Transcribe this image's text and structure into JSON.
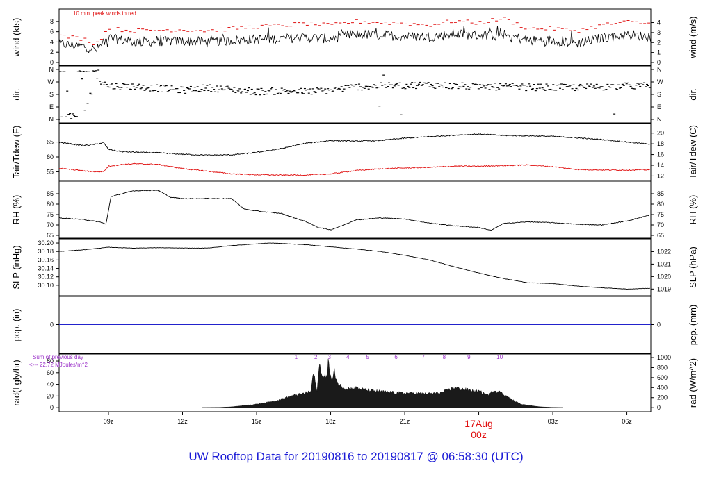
{
  "page": {
    "title": "UW Rooftop Data for 20190816  to  20190817 @ 06:58:30  (UTC)"
  },
  "colors": {
    "axis": "#000000",
    "peak": "#e01010",
    "dewpoint": "#e01010",
    "precip": "#2222cc",
    "rad": "#9a2fc8",
    "title": "#1a1ad6",
    "date_marker": "#e01010"
  },
  "x_axis": {
    "tick_labels": [
      "09z",
      "12z",
      "15z",
      "18z",
      "21z",
      "00z",
      "03z",
      "06z"
    ],
    "tick_hours_utc": [
      9,
      12,
      15,
      18,
      21,
      24,
      27,
      30
    ],
    "date_label": "17Aug",
    "date_hour_label": "00z",
    "range_hours_utc": [
      7.0,
      30.97
    ]
  },
  "chart_data": [
    {
      "type": "line",
      "panel": "wind",
      "ylabel_left": "wind (kts)",
      "ylabel_right": "wind (m/s)",
      "yticks_left": [
        "0",
        "2",
        "4",
        "6",
        "8"
      ],
      "yticks_right": [
        "0",
        "1",
        "2",
        "3",
        "4"
      ],
      "ylim": [
        0,
        9.2
      ],
      "annotation": "10 min. peak winds in red",
      "series": [
        {
          "name": "wind",
          "x": [
            7.0,
            8.0,
            8.5,
            9.0,
            10.0,
            11.0,
            12.0,
            13.0,
            14.0,
            15.0,
            16.0,
            17.0,
            18.0,
            19.0,
            20.0,
            21.0,
            22.0,
            23.0,
            24.0,
            25.0,
            26.0,
            27.0,
            28.0,
            29.0,
            30.0,
            30.97
          ],
          "y": [
            3.6,
            3.2,
            2.4,
            4.8,
            4.0,
            4.1,
            4.2,
            4.0,
            4.3,
            4.5,
            4.6,
            4.9,
            4.6,
            5.5,
            5.3,
            5.1,
            5.0,
            5.6,
            5.3,
            5.5,
            4.3,
            4.3,
            3.8,
            4.8,
            5.4,
            5.0
          ]
        },
        {
          "name": "10 min. peak winds",
          "x": [
            7.0,
            8.0,
            8.5,
            9.0,
            10.0,
            11.0,
            12.0,
            13.0,
            14.0,
            15.0,
            16.0,
            17.0,
            18.0,
            19.0,
            20.0,
            21.0,
            22.0,
            23.0,
            24.0,
            25.0,
            26.0,
            27.0,
            28.0,
            29.0,
            30.0,
            30.97
          ],
          "y": [
            5.2,
            4.6,
            3.6,
            6.6,
            6.2,
            6.3,
            6.4,
            6.2,
            6.6,
            7.0,
            7.2,
            7.6,
            7.2,
            8.0,
            7.8,
            7.6,
            7.3,
            8.1,
            7.7,
            8.6,
            6.6,
            6.6,
            6.2,
            7.3,
            7.9,
            7.5
          ]
        }
      ]
    },
    {
      "type": "scatter",
      "panel": "direction",
      "ylabel_left": "dir.",
      "ylabel_right": "dir.",
      "yticks_left": [
        "N",
        "E",
        "S",
        "W",
        "N"
      ],
      "yticks_right": [
        "N",
        "E",
        "S",
        "W",
        "N"
      ],
      "ylim": [
        0,
        360
      ],
      "series": [
        {
          "name": "direction",
          "x": [
            7.0,
            8.0,
            8.5,
            9.0,
            10.0,
            11.0,
            12.0,
            13.0,
            14.0,
            15.0,
            16.0,
            17.0,
            18.0,
            19.0,
            20.0,
            21.0,
            22.0,
            23.0,
            24.0,
            25.0,
            26.0,
            27.0,
            28.0,
            29.0,
            30.0,
            30.97
          ],
          "y": [
            15,
            40,
            300,
            240,
            238,
            225,
            210,
            228,
            215,
            200,
            205,
            200,
            210,
            235,
            240,
            245,
            250,
            240,
            238,
            235,
            232,
            230,
            230,
            235,
            240,
            242
          ]
        }
      ]
    },
    {
      "type": "line",
      "panel": "temperature",
      "ylabel_left": "Tair/Tdew (F)",
      "ylabel_right": "Tair/Tdew (C)",
      "yticks_left": [
        "55",
        "60",
        "65"
      ],
      "yticks_right": [
        "12",
        "14",
        "16",
        "18",
        "20"
      ],
      "ylim": [
        53.0,
        69.8
      ],
      "series": [
        {
          "name": "Tair",
          "x": [
            7.0,
            8.0,
            8.5,
            8.8,
            9.0,
            9.5,
            10.0,
            11.0,
            12.0,
            13.0,
            14.0,
            15.0,
            16.0,
            17.0,
            18.0,
            19.0,
            20.0,
            21.0,
            22.0,
            23.0,
            24.0,
            25.0,
            26.0,
            27.0,
            28.0,
            29.0,
            30.0,
            30.97
          ],
          "y": [
            64.9,
            63.8,
            64.3,
            64.8,
            62.5,
            61.8,
            61.6,
            61.4,
            60.9,
            60.6,
            60.7,
            61.5,
            62.8,
            64.6,
            65.5,
            65.3,
            65.5,
            66.3,
            66.8,
            67.3,
            67.7,
            67.2,
            67.1,
            66.9,
            66.4,
            65.8,
            65.0,
            64.3
          ]
        },
        {
          "name": "Tdew",
          "x": [
            7.0,
            8.0,
            8.5,
            8.8,
            9.0,
            9.5,
            10.0,
            11.0,
            12.0,
            13.0,
            14.0,
            15.0,
            16.0,
            17.0,
            18.0,
            19.0,
            20.0,
            21.0,
            22.0,
            23.0,
            24.0,
            25.0,
            26.0,
            27.0,
            28.0,
            29.0,
            30.0,
            30.97
          ],
          "y": [
            56.2,
            55.3,
            55.0,
            55.1,
            56.9,
            57.4,
            57.7,
            57.5,
            56.1,
            55.2,
            54.3,
            54.0,
            53.9,
            53.9,
            54.3,
            55.4,
            56.0,
            56.3,
            56.5,
            56.9,
            56.9,
            57.1,
            57.3,
            56.7,
            55.8,
            55.6,
            55.6,
            55.7
          ]
        }
      ]
    },
    {
      "type": "line",
      "panel": "humidity",
      "ylabel_left": "RH (%)",
      "ylabel_right": "RH (%)",
      "yticks_left": [
        "65",
        "70",
        "75",
        "80",
        "85"
      ],
      "yticks_right": [
        "65",
        "70",
        "75",
        "80",
        "85"
      ],
      "ylim": [
        65,
        88
      ],
      "series": [
        {
          "name": "RH",
          "x": [
            7.0,
            8.0,
            8.7,
            8.9,
            9.1,
            10.0,
            11.0,
            11.5,
            12.0,
            13.0,
            14.0,
            14.5,
            15.0,
            16.0,
            17.0,
            17.5,
            18.0,
            18.5,
            19.0,
            20.0,
            21.0,
            22.0,
            23.0,
            24.0,
            24.5,
            25.0,
            26.0,
            27.0,
            28.0,
            29.0,
            30.0,
            30.97
          ],
          "y": [
            73.4,
            72.6,
            71.3,
            70.3,
            83.6,
            86.4,
            86.7,
            83.3,
            82.6,
            82.7,
            82.6,
            77.6,
            76.7,
            75.5,
            71.6,
            68.8,
            67.7,
            69.8,
            72.4,
            73.4,
            72.9,
            70.9,
            69.6,
            68.8,
            67.4,
            70.7,
            71.5,
            71.1,
            70.3,
            70.0,
            71.9,
            74.9
          ]
        }
      ]
    },
    {
      "type": "line",
      "panel": "pressure",
      "ylabel_left": "SLP (inHg)",
      "ylabel_right": "SLP (hPa)",
      "yticks_left": [
        "30.10",
        "30.12",
        "30.14",
        "30.16",
        "30.18",
        "30.20"
      ],
      "yticks_right": [
        "1019",
        "1020",
        "1021",
        "1022"
      ],
      "ylim": [
        30.085,
        30.205
      ],
      "series": [
        {
          "name": "SLP",
          "x": [
            7.0,
            8.0,
            9.0,
            10.0,
            11.0,
            12.0,
            13.0,
            14.0,
            15.0,
            15.5,
            16.0,
            17.0,
            18.0,
            19.0,
            20.0,
            21.0,
            22.0,
            23.0,
            24.0,
            25.0,
            26.0,
            27.0,
            28.0,
            29.0,
            30.0,
            30.97
          ],
          "y": [
            30.18,
            30.184,
            30.19,
            30.188,
            30.189,
            30.188,
            30.188,
            30.194,
            30.198,
            30.2,
            30.199,
            30.196,
            30.191,
            30.186,
            30.18,
            30.171,
            30.16,
            30.144,
            30.129,
            30.116,
            30.106,
            30.104,
            30.098,
            30.094,
            30.091,
            30.093
          ]
        }
      ]
    },
    {
      "type": "line",
      "panel": "precipitation",
      "ylabel_left": "pcp. (in)",
      "ylabel_right": "pcp. (mm)",
      "yticks_left": [
        "0"
      ],
      "yticks_right": [
        "0"
      ],
      "ylim": [
        -1,
        1
      ],
      "series": [
        {
          "name": "precip",
          "x": [
            7.0,
            30.97
          ],
          "y": [
            0,
            0
          ]
        }
      ]
    },
    {
      "type": "area",
      "panel": "radiation",
      "ylabel_left": "rad(Lgly/hr)",
      "ylabel_right": "rad (W/m^2)",
      "yticks_left": [
        "0",
        "20",
        "40",
        "60",
        "80"
      ],
      "yticks_right": [
        "0",
        "200",
        "400",
        "600",
        "800",
        "1000"
      ],
      "ylim": [
        -1,
        86
      ],
      "annotation_lines": [
        "Sum of previous day",
        "<--- 22.72 MJoules/m^2"
      ],
      "hour_marks": [
        "1",
        "2",
        "3",
        "4",
        "5",
        "6",
        "7",
        "8",
        "9",
        "10"
      ],
      "hour_marks_at_utc": [
        16.6,
        17.4,
        17.95,
        18.7,
        19.5,
        20.65,
        21.75,
        22.6,
        23.6,
        24.85
      ],
      "series": [
        {
          "name": "rad",
          "x": [
            12.8,
            13.5,
            14.0,
            15.0,
            15.8,
            16.5,
            16.9,
            17.2,
            17.3,
            17.45,
            17.55,
            17.7,
            17.85,
            17.9,
            18.05,
            18.15,
            18.3,
            18.6,
            19.0,
            19.5,
            20.0,
            20.5,
            21.0,
            21.5,
            22.0,
            22.5,
            23.0,
            23.5,
            24.0,
            24.4,
            24.6,
            24.9,
            25.3,
            25.7,
            26.0,
            26.5,
            27.0,
            27.4
          ],
          "y": [
            0,
            0.5,
            1.5,
            6,
            12,
            21,
            24,
            28,
            60,
            30,
            74,
            50,
            58,
            78,
            44,
            62,
            40,
            33,
            34,
            30,
            28,
            26,
            25,
            25,
            24,
            26,
            34,
            31,
            28,
            22,
            30,
            26,
            15,
            6,
            4,
            1.5,
            0.5,
            0
          ]
        }
      ]
    }
  ]
}
